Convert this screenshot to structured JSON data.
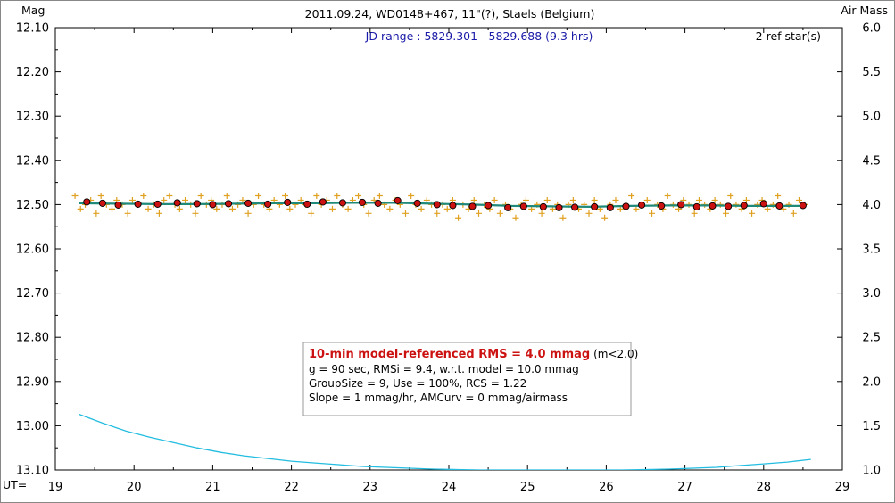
{
  "chart_data": {
    "type": "scatter",
    "title": "2011.09.24, WD0148+467, 11\"(?), Staels (Belgium)",
    "jd_range": "JD range : 5829.301 - 5829.688 (9.3 hrs)",
    "ref_stars": "2 ref star(s)",
    "ylabel": "Mag",
    "y2label": "Air Mass",
    "xlabel": "UT=",
    "xlim": [
      19,
      29
    ],
    "ylim": [
      12.1,
      13.1
    ],
    "y_inverted": true,
    "y2lim": [
      1.0,
      6.0
    ],
    "x_ticks": [
      "19",
      "20",
      "21",
      "22",
      "23",
      "24",
      "25",
      "26",
      "27",
      "28",
      "29"
    ],
    "y_ticks": [
      "12.10",
      "12.20",
      "12.30",
      "12.40",
      "12.50",
      "12.60",
      "12.70",
      "12.80",
      "12.90",
      "13.00",
      "13.10"
    ],
    "y2_ticks": [
      "6.0",
      "5.5",
      "5.0",
      "4.5",
      "4.0",
      "3.5",
      "3.0",
      "2.5",
      "2.0",
      "1.5",
      "1.0"
    ],
    "grid": false,
    "colors": {
      "raw_points": "#e0a020",
      "binned_points": "#cc1111",
      "model_line": "#1f8a7a",
      "airmass_line": "#22bde0",
      "jd_text": "#1a1aa8",
      "rms_text": "#cc1111"
    },
    "series": [
      {
        "name": "raw",
        "style": "plus",
        "x": [
          19.25,
          19.32,
          19.38,
          19.45,
          19.52,
          19.58,
          19.65,
          19.72,
          19.78,
          19.85,
          19.92,
          19.98,
          20.05,
          20.12,
          20.18,
          20.25,
          20.32,
          20.38,
          20.45,
          20.52,
          20.58,
          20.65,
          20.72,
          20.78,
          20.85,
          20.92,
          20.98,
          21.05,
          21.12,
          21.18,
          21.25,
          21.32,
          21.38,
          21.45,
          21.52,
          21.58,
          21.65,
          21.72,
          21.78,
          21.85,
          21.92,
          21.98,
          22.05,
          22.12,
          22.18,
          22.25,
          22.32,
          22.38,
          22.45,
          22.52,
          22.58,
          22.65,
          22.72,
          22.78,
          22.85,
          22.92,
          22.98,
          23.05,
          23.12,
          23.18,
          23.25,
          23.32,
          23.38,
          23.45,
          23.52,
          23.58,
          23.65,
          23.72,
          23.78,
          23.85,
          23.92,
          23.98,
          24.05,
          24.12,
          24.18,
          24.25,
          24.32,
          24.38,
          24.45,
          24.52,
          24.58,
          24.65,
          24.72,
          24.78,
          24.85,
          24.92,
          24.98,
          25.05,
          25.12,
          25.18,
          25.25,
          25.32,
          25.38,
          25.45,
          25.52,
          25.58,
          25.65,
          25.72,
          25.78,
          25.85,
          25.92,
          25.98,
          26.05,
          26.12,
          26.18,
          26.25,
          26.32,
          26.38,
          26.45,
          26.52,
          26.58,
          26.65,
          26.72,
          26.78,
          26.85,
          26.92,
          26.98,
          27.05,
          27.12,
          27.18,
          27.25,
          27.32,
          27.38,
          27.45,
          27.52,
          27.58,
          27.65,
          27.72,
          27.78,
          27.85,
          27.92,
          27.98,
          28.05,
          28.12,
          28.18,
          28.25,
          28.32,
          28.38,
          28.45,
          28.52
        ],
        "y": [
          12.48,
          12.51,
          12.5,
          12.49,
          12.52,
          12.48,
          12.5,
          12.51,
          12.49,
          12.5,
          12.52,
          12.49,
          12.5,
          12.48,
          12.51,
          12.5,
          12.52,
          12.49,
          12.48,
          12.5,
          12.51,
          12.49,
          12.5,
          12.52,
          12.48,
          12.5,
          12.49,
          12.51,
          12.5,
          12.48,
          12.51,
          12.5,
          12.49,
          12.52,
          12.5,
          12.48,
          12.5,
          12.51,
          12.49,
          12.5,
          12.48,
          12.51,
          12.5,
          12.49,
          12.5,
          12.52,
          12.48,
          12.5,
          12.49,
          12.51,
          12.48,
          12.5,
          12.51,
          12.49,
          12.48,
          12.5,
          12.52,
          12.49,
          12.48,
          12.5,
          12.51,
          12.49,
          12.5,
          12.52,
          12.48,
          12.5,
          12.51,
          12.49,
          12.5,
          12.52,
          12.5,
          12.51,
          12.49,
          12.53,
          12.5,
          12.51,
          12.49,
          12.52,
          12.5,
          12.51,
          12.49,
          12.52,
          12.5,
          12.51,
          12.53,
          12.5,
          12.49,
          12.51,
          12.5,
          12.52,
          12.49,
          12.51,
          12.5,
          12.53,
          12.5,
          12.49,
          12.51,
          12.5,
          12.52,
          12.49,
          12.51,
          12.53,
          12.5,
          12.49,
          12.51,
          12.5,
          12.48,
          12.51,
          12.5,
          12.49,
          12.52,
          12.5,
          12.51,
          12.48,
          12.5,
          12.51,
          12.49,
          12.5,
          12.52,
          12.49,
          12.5,
          12.51,
          12.49,
          12.5,
          12.52,
          12.48,
          12.5,
          12.51,
          12.49,
          12.52,
          12.5,
          12.49,
          12.51,
          12.5,
          12.48,
          12.51,
          12.5,
          12.52,
          12.49,
          12.5
        ]
      },
      {
        "name": "binned",
        "style": "dot",
        "x": [
          19.4,
          19.6,
          19.8,
          20.05,
          20.3,
          20.55,
          20.8,
          21.0,
          21.2,
          21.45,
          21.7,
          21.95,
          22.2,
          22.4,
          22.65,
          22.9,
          23.1,
          23.35,
          23.6,
          23.85,
          24.05,
          24.3,
          24.5,
          24.75,
          24.95,
          25.2,
          25.4,
          25.6,
          25.85,
          26.05,
          26.25,
          26.45,
          26.7,
          26.95,
          27.15,
          27.35,
          27.55,
          27.75,
          28.0,
          28.2,
          28.5
        ],
        "y": [
          12.494,
          12.497,
          12.501,
          12.499,
          12.499,
          12.496,
          12.498,
          12.5,
          12.498,
          12.497,
          12.499,
          12.495,
          12.499,
          12.494,
          12.496,
          12.495,
          12.497,
          12.491,
          12.497,
          12.5,
          12.502,
          12.504,
          12.502,
          12.507,
          12.504,
          12.505,
          12.507,
          12.506,
          12.505,
          12.507,
          12.504,
          12.501,
          12.503,
          12.5,
          12.505,
          12.503,
          12.504,
          12.502,
          12.498,
          12.503,
          12.502
        ]
      },
      {
        "name": "model",
        "style": "line",
        "x": [
          19.3,
          19.8,
          20.3,
          20.8,
          21.3,
          21.8,
          22.3,
          22.8,
          23.3,
          23.8,
          24.3,
          24.8,
          25.3,
          25.8,
          26.3,
          26.8,
          27.3,
          27.8,
          28.3,
          28.5
        ],
        "y": [
          12.497,
          12.498,
          12.499,
          12.499,
          12.498,
          12.497,
          12.497,
          12.496,
          12.496,
          12.498,
          12.5,
          12.503,
          12.504,
          12.505,
          12.503,
          12.502,
          12.502,
          12.503,
          12.503,
          12.503
        ]
      }
    ],
    "airmass": {
      "name": "Air Mass",
      "x": [
        19.3,
        19.6,
        19.9,
        20.2,
        20.5,
        20.8,
        21.1,
        21.4,
        21.7,
        22.0,
        22.3,
        22.6,
        22.9,
        23.2,
        23.5,
        23.8,
        24.1,
        24.4,
        24.7,
        25.0,
        25.3,
        25.6,
        25.9,
        26.2,
        26.5,
        26.8,
        27.1,
        27.4,
        27.7,
        28.0,
        28.3,
        28.6
      ],
      "y": [
        1.63,
        1.53,
        1.44,
        1.37,
        1.31,
        1.25,
        1.2,
        1.16,
        1.13,
        1.1,
        1.08,
        1.06,
        1.04,
        1.03,
        1.02,
        1.01,
        1.005,
        1.0,
        1.0,
        1.0,
        1.0,
        1.0,
        1.0,
        1.0,
        1.005,
        1.01,
        1.02,
        1.03,
        1.05,
        1.07,
        1.09,
        1.12
      ]
    },
    "info_box": {
      "line1": "10-min model-referenced RMS = 4.0 mmag",
      "line1_suffix": " (m<2.0)",
      "line2": "g = 90 sec, RMSi = 9.4, w.r.t. model = 10.0 mmag",
      "line3": "GroupSize = 9, Use = 100%, RCS = 1.22",
      "line4": "Slope = 1 mmag/hr, AMCurv = 0 mmag/airmass"
    }
  }
}
